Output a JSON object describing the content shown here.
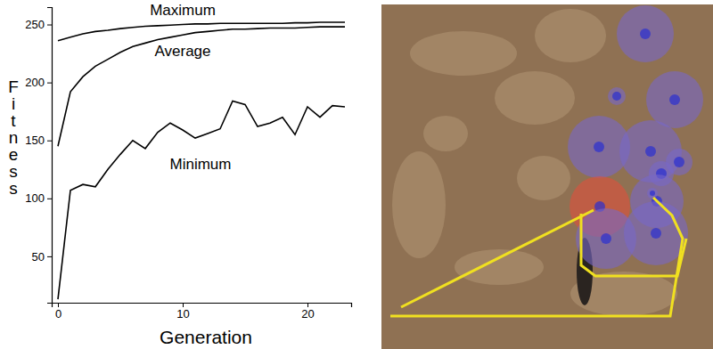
{
  "chart_data": {
    "type": "line",
    "x_label": "Generation",
    "y_label": "Fitness",
    "x": [
      0,
      1,
      2,
      3,
      4,
      5,
      6,
      7,
      8,
      9,
      10,
      11,
      12,
      13,
      14,
      15,
      16,
      17,
      18,
      19,
      20,
      21,
      22,
      23
    ],
    "xlim": [
      -0.5,
      23.5
    ],
    "xticks": [
      0,
      10,
      20
    ],
    "ylim": [
      10,
      265
    ],
    "yticks": [
      50,
      100,
      150,
      200,
      250
    ],
    "grid": false,
    "series": [
      {
        "name": "Maximum",
        "color": "#000000",
        "values": [
          236,
          239,
          242,
          244,
          245,
          246.5,
          247.5,
          248.5,
          249,
          249.5,
          250,
          250.5,
          250.5,
          251,
          251,
          251,
          251,
          251,
          251,
          251.5,
          251.5,
          252,
          252,
          252
        ]
      },
      {
        "name": "Average",
        "color": "#000000",
        "values": [
          145,
          192,
          205,
          214,
          220,
          226,
          231,
          234,
          237,
          239,
          241,
          243,
          244,
          245,
          246,
          246,
          246.5,
          247,
          247,
          247,
          247.5,
          248,
          248,
          248
        ]
      },
      {
        "name": "Minimum",
        "color": "#000000",
        "values": [
          13,
          107,
          112,
          110,
          125,
          138,
          150,
          143,
          157,
          165,
          159,
          152,
          156,
          160,
          184,
          181,
          162,
          165,
          170,
          155,
          179,
          170,
          180,
          179
        ]
      }
    ]
  }
}
